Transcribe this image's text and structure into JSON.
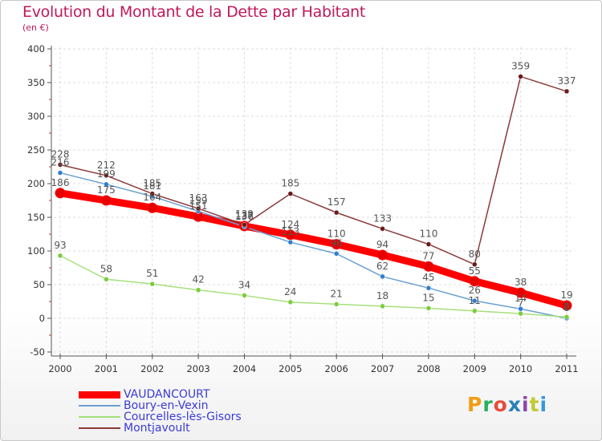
{
  "header": {
    "title": "Evolution du Montant de la Dette par Habitant",
    "unit": "(en €)"
  },
  "logo": {
    "text": "Proxiti",
    "colors": [
      "#f39c12",
      "#27ae60",
      "#e74c3c",
      "#2980b9",
      "#8e44ad",
      "#c0ca33",
      "#3498db"
    ]
  },
  "colors": {
    "title": "#c2185b",
    "legend_text": "#3b3bd6",
    "grid": "#dddddd"
  },
  "chart_data": {
    "type": "line",
    "title": "Evolution du Montant de la Dette par Habitant",
    "ylabel": "(en €)",
    "xlabel": "",
    "x": [
      "2000",
      "2001",
      "2002",
      "2003",
      "2004",
      "2005",
      "2006",
      "2007",
      "2008",
      "2009",
      "2010",
      "2011"
    ],
    "ylim": [
      -50,
      400
    ],
    "yticks": [
      -50,
      0,
      50,
      100,
      150,
      200,
      250,
      300,
      350,
      400
    ],
    "grid": true,
    "legend_position": "bottom-left",
    "series": [
      {
        "name": "VAUDANCOURT",
        "color": "#ff0000",
        "marker": "#e60000",
        "emphasis": true,
        "values": [
          186,
          175,
          164,
          151,
          137,
          124,
          110,
          94,
          77,
          55,
          38,
          19
        ],
        "labels": [
          "186",
          "175",
          "164",
          "151",
          "137",
          "124",
          "110",
          "94",
          "77",
          "55",
          "38",
          "19"
        ]
      },
      {
        "name": "Boury-en-Vexin",
        "color": "#6a9fd0",
        "marker": "#2f7fd0",
        "values": [
          216,
          199,
          181,
          159,
          136,
          113,
          96,
          62,
          45,
          26,
          14,
          0
        ],
        "labels": [
          "216",
          "199",
          "181",
          "159",
          "136",
          "113",
          "96",
          "62",
          "45",
          "26",
          "14",
          "0"
        ]
      },
      {
        "name": "Courcelles-lès-Gisors",
        "color": "#a6e07a",
        "marker": "#7ccc3d",
        "values": [
          93,
          58,
          51,
          42,
          34,
          24,
          21,
          18,
          15,
          11,
          7,
          2
        ],
        "labels": [
          "93",
          "58",
          "51",
          "42",
          "34",
          "24",
          "21",
          "18",
          "15",
          "11",
          "7",
          "2"
        ]
      },
      {
        "name": "Montjavoult",
        "color": "#8b3a3a",
        "marker": "#6b1a1a",
        "values": [
          228,
          212,
          185,
          163,
          139,
          185,
          157,
          133,
          110,
          80,
          359,
          337
        ],
        "labels": [
          "228",
          "212",
          "185",
          "163",
          "139",
          "185",
          "157",
          "133",
          "110",
          "80",
          "359",
          "337"
        ]
      }
    ]
  }
}
